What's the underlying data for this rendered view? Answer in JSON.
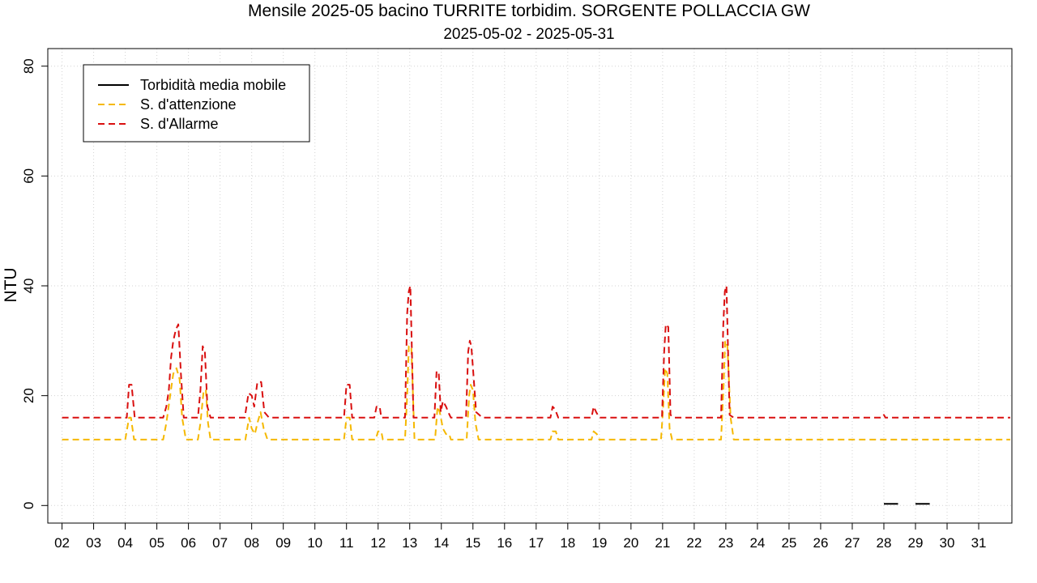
{
  "chart_data": {
    "type": "line",
    "title": "Mensile 2025-05 bacino TURRITE torbidim. SORGENTE POLLACCIA GW",
    "subtitle": "2025-05-02 - 2025-05-31",
    "xlabel": "",
    "ylabel": "NTU",
    "xlim": [
      1.55,
      32.05
    ],
    "ylim": [
      -3.2,
      83.2
    ],
    "x_ticks": [
      "02",
      "03",
      "04",
      "05",
      "06",
      "07",
      "08",
      "09",
      "10",
      "11",
      "12",
      "13",
      "14",
      "15",
      "16",
      "17",
      "18",
      "19",
      "20",
      "21",
      "22",
      "23",
      "24",
      "25",
      "26",
      "27",
      "28",
      "29",
      "30",
      "31"
    ],
    "y_ticks": [
      0,
      20,
      40,
      60,
      80
    ],
    "grid": true,
    "legend_position": "top-left",
    "series": [
      {
        "name": "Torbidità media mobile",
        "color": "#000000",
        "dash": "solid",
        "segments": [
          [
            [
              28.0,
              0.3
            ],
            [
              28.45,
              0.3
            ]
          ],
          [
            [
              29.0,
              0.3
            ],
            [
              29.45,
              0.3
            ]
          ]
        ]
      },
      {
        "name": "S. d'attenzione",
        "color": "#F5B800",
        "dash": "dashed",
        "points": [
          [
            2.0,
            12
          ],
          [
            4.0,
            12
          ],
          [
            4.12,
            16
          ],
          [
            4.18,
            16
          ],
          [
            4.28,
            12
          ],
          [
            5.2,
            12
          ],
          [
            5.3,
            15
          ],
          [
            5.42,
            20
          ],
          [
            5.52,
            24
          ],
          [
            5.62,
            25
          ],
          [
            5.72,
            23
          ],
          [
            5.8,
            16
          ],
          [
            5.92,
            12
          ],
          [
            6.3,
            12
          ],
          [
            6.38,
            15
          ],
          [
            6.48,
            21
          ],
          [
            6.55,
            21
          ],
          [
            6.62,
            15
          ],
          [
            6.7,
            12
          ],
          [
            7.8,
            12
          ],
          [
            7.92,
            16
          ],
          [
            8.0,
            14
          ],
          [
            8.1,
            13
          ],
          [
            8.18,
            15
          ],
          [
            8.28,
            17
          ],
          [
            8.38,
            14
          ],
          [
            8.5,
            12
          ],
          [
            10.92,
            12
          ],
          [
            11.0,
            16
          ],
          [
            11.1,
            16
          ],
          [
            11.18,
            12
          ],
          [
            11.92,
            12
          ],
          [
            12.0,
            13.5
          ],
          [
            12.1,
            13.5
          ],
          [
            12.15,
            12
          ],
          [
            12.85,
            12
          ],
          [
            12.92,
            20
          ],
          [
            12.97,
            29
          ],
          [
            13.05,
            29
          ],
          [
            13.15,
            12
          ],
          [
            13.8,
            12
          ],
          [
            13.88,
            18
          ],
          [
            13.95,
            17
          ],
          [
            14.05,
            14
          ],
          [
            14.15,
            13
          ],
          [
            14.25,
            13
          ],
          [
            14.3,
            12
          ],
          [
            14.8,
            12
          ],
          [
            14.88,
            20
          ],
          [
            14.93,
            22
          ],
          [
            15.0,
            21
          ],
          [
            15.08,
            15
          ],
          [
            15.18,
            12
          ],
          [
            17.45,
            12
          ],
          [
            17.52,
            13.5
          ],
          [
            17.62,
            13.5
          ],
          [
            17.7,
            12
          ],
          [
            18.75,
            12
          ],
          [
            18.82,
            13.5
          ],
          [
            18.92,
            13
          ],
          [
            19.0,
            12
          ],
          [
            20.95,
            12
          ],
          [
            21.02,
            18
          ],
          [
            21.08,
            25
          ],
          [
            21.15,
            24
          ],
          [
            21.22,
            14
          ],
          [
            21.3,
            12
          ],
          [
            22.85,
            12
          ],
          [
            22.93,
            22
          ],
          [
            22.98,
            30
          ],
          [
            23.05,
            29
          ],
          [
            23.15,
            16
          ],
          [
            23.25,
            12
          ],
          [
            32.0,
            12
          ]
        ]
      },
      {
        "name": "S. d'Allarme",
        "color": "#D90F0F",
        "dash": "dashed",
        "points": [
          [
            2.0,
            16
          ],
          [
            4.05,
            16
          ],
          [
            4.12,
            22
          ],
          [
            4.2,
            22
          ],
          [
            4.3,
            16
          ],
          [
            5.2,
            16
          ],
          [
            5.3,
            18
          ],
          [
            5.38,
            21
          ],
          [
            5.45,
            27
          ],
          [
            5.52,
            30
          ],
          [
            5.6,
            32
          ],
          [
            5.68,
            33
          ],
          [
            5.76,
            24
          ],
          [
            5.85,
            16
          ],
          [
            6.3,
            16
          ],
          [
            6.38,
            21
          ],
          [
            6.45,
            29
          ],
          [
            6.52,
            28
          ],
          [
            6.6,
            18
          ],
          [
            6.7,
            16
          ],
          [
            7.78,
            16
          ],
          [
            7.9,
            20.5
          ],
          [
            8.0,
            20
          ],
          [
            8.08,
            18
          ],
          [
            8.18,
            22.5
          ],
          [
            8.3,
            22.5
          ],
          [
            8.4,
            17
          ],
          [
            8.55,
            16
          ],
          [
            10.92,
            16
          ],
          [
            11.0,
            22
          ],
          [
            11.1,
            22
          ],
          [
            11.18,
            16
          ],
          [
            11.88,
            16
          ],
          [
            11.95,
            18
          ],
          [
            12.05,
            18
          ],
          [
            12.1,
            16
          ],
          [
            12.85,
            16
          ],
          [
            12.92,
            35
          ],
          [
            12.97,
            39
          ],
          [
            13.02,
            40
          ],
          [
            13.12,
            16
          ],
          [
            13.78,
            16
          ],
          [
            13.85,
            24.5
          ],
          [
            13.92,
            24
          ],
          [
            13.98,
            17
          ],
          [
            14.05,
            19
          ],
          [
            14.15,
            18
          ],
          [
            14.22,
            17
          ],
          [
            14.3,
            16
          ],
          [
            14.78,
            16
          ],
          [
            14.85,
            28
          ],
          [
            14.9,
            30
          ],
          [
            14.95,
            29
          ],
          [
            15.0,
            25
          ],
          [
            15.1,
            17
          ],
          [
            15.2,
            16.5
          ],
          [
            15.3,
            16
          ],
          [
            17.45,
            16
          ],
          [
            17.52,
            18
          ],
          [
            17.6,
            17.5
          ],
          [
            17.7,
            16
          ],
          [
            18.75,
            16
          ],
          [
            18.82,
            18
          ],
          [
            18.9,
            17
          ],
          [
            19.0,
            16
          ],
          [
            20.98,
            16
          ],
          [
            21.05,
            28
          ],
          [
            21.1,
            33
          ],
          [
            21.18,
            32.5
          ],
          [
            21.25,
            16.5
          ],
          [
            21.35,
            16
          ],
          [
            22.85,
            16
          ],
          [
            22.92,
            33
          ],
          [
            22.97,
            39
          ],
          [
            23.02,
            40
          ],
          [
            23.12,
            16.5
          ],
          [
            23.25,
            16
          ],
          [
            27.95,
            16
          ],
          [
            28.0,
            16.5
          ],
          [
            28.05,
            16
          ],
          [
            32.0,
            16
          ]
        ]
      }
    ]
  }
}
